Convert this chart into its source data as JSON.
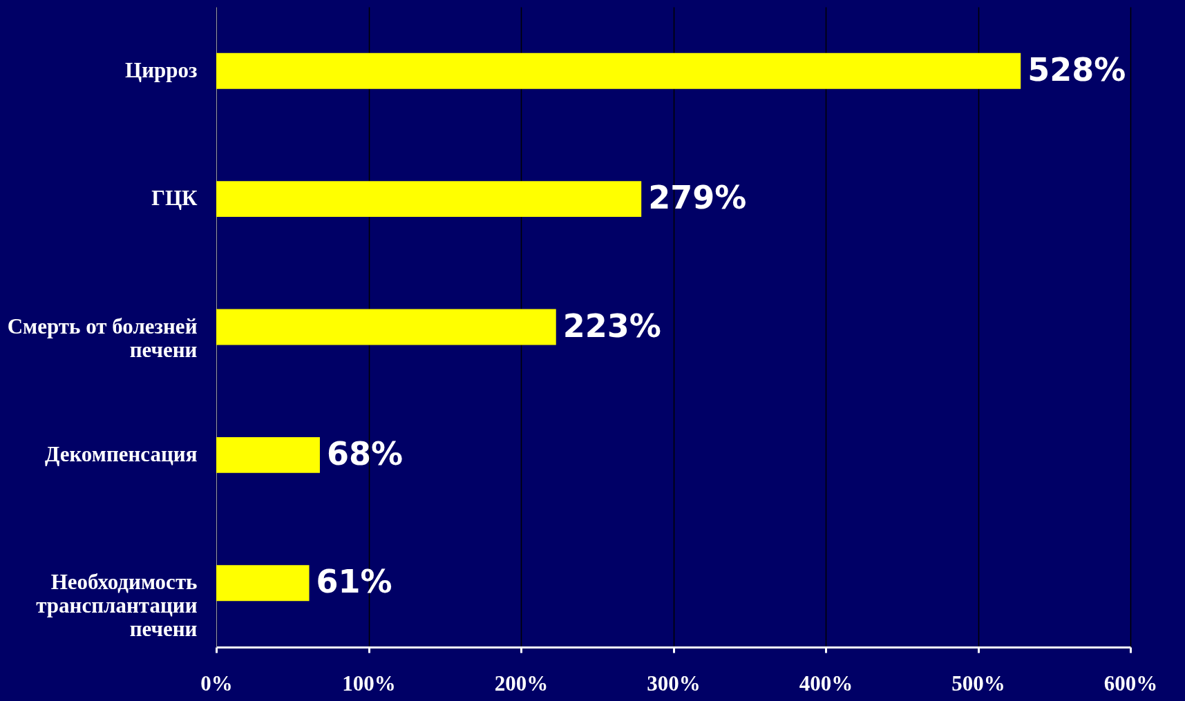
{
  "chart_data": {
    "type": "bar",
    "orientation": "horizontal",
    "categories": [
      "Цирроз",
      "ГЦК",
      "Смерть от болезней печени",
      "Декомпенсация",
      "Необходимость трансплантации печени"
    ],
    "values": [
      528,
      279,
      223,
      68,
      61
    ],
    "value_labels": [
      "528%",
      "279%",
      "223%",
      "68%",
      "61%"
    ],
    "color": "#ffff00",
    "xlim": [
      0,
      600
    ],
    "xticks": [
      {
        "value": 0,
        "label": "0%"
      },
      {
        "value": 100,
        "label": "100%"
      },
      {
        "value": 200,
        "label": "200%"
      },
      {
        "value": 300,
        "label": "300%"
      },
      {
        "value": 400,
        "label": "400%"
      },
      {
        "value": 500,
        "label": "500%"
      },
      {
        "value": 600,
        "label": "600%"
      }
    ],
    "grid": "x"
  }
}
